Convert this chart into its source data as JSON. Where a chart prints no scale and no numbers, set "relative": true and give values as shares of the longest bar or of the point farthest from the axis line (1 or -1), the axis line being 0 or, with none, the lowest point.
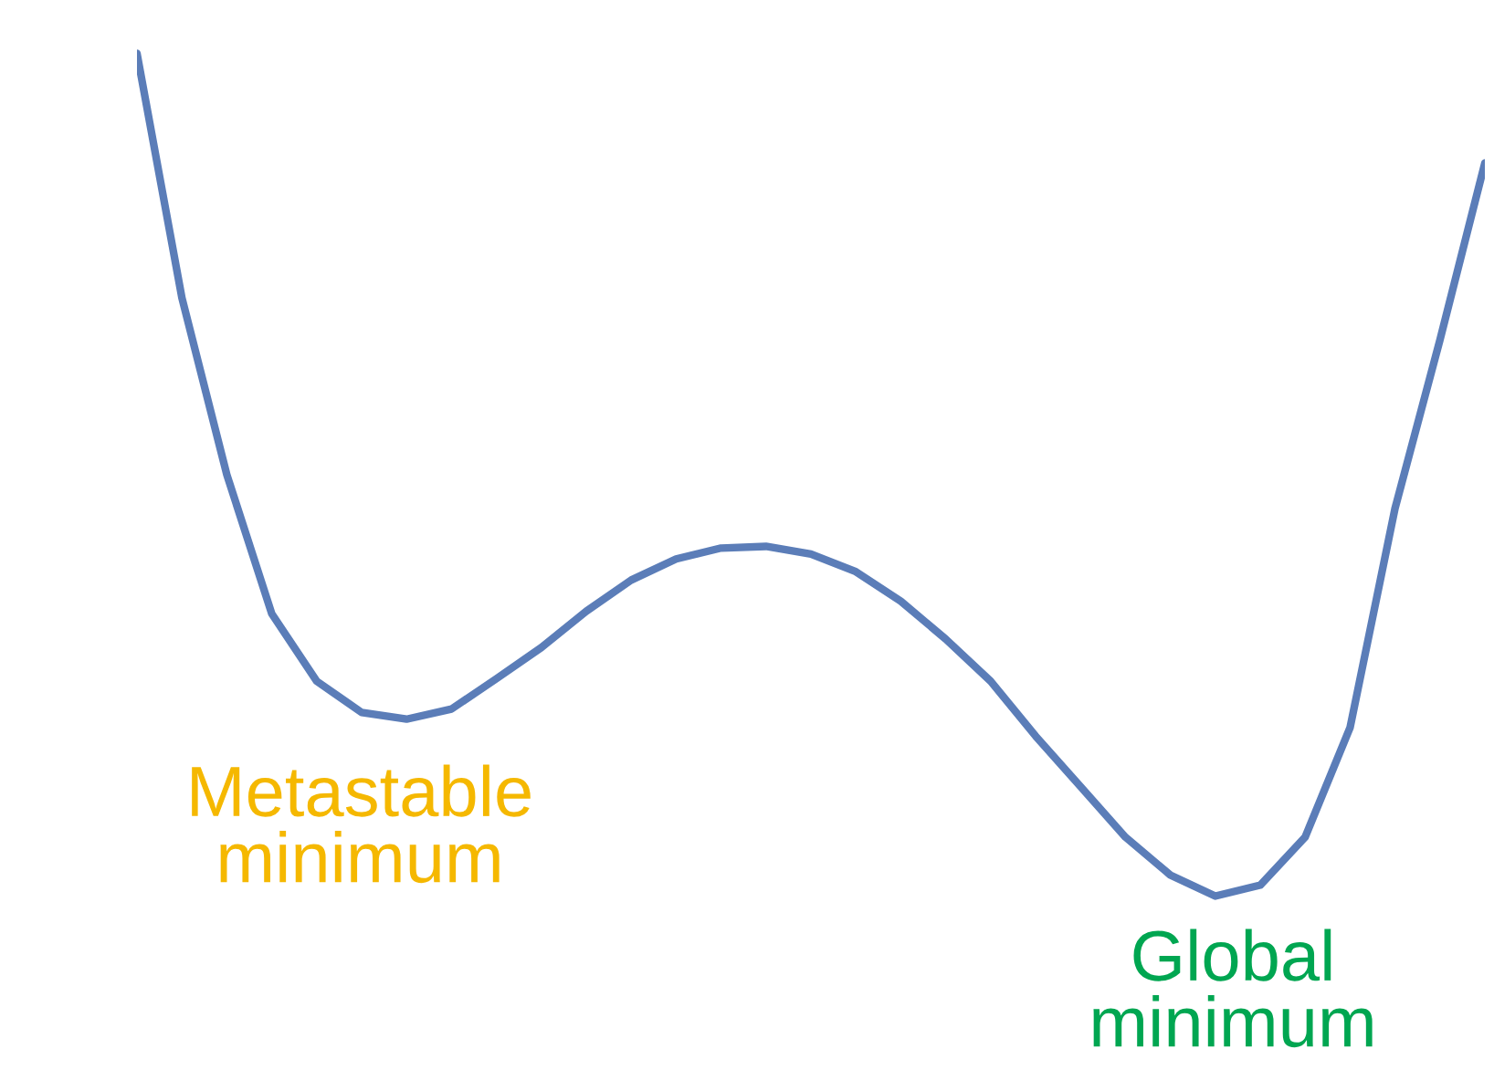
{
  "chart_data": {
    "type": "line",
    "relative": true,
    "categories": [
      null,
      null,
      null,
      null,
      null,
      null,
      null,
      null,
      null,
      null,
      null,
      null,
      null,
      null,
      null,
      null,
      null,
      null,
      null,
      null,
      null,
      null,
      null,
      null,
      null,
      null,
      null,
      null,
      null,
      null,
      null
    ],
    "series": [
      {
        "color": "#5b7db8",
        "values": [
          1.0,
          0.71,
          0.5,
          0.335,
          0.255,
          0.218,
          0.21,
          0.222,
          0.258,
          0.295,
          0.338,
          0.375,
          0.4,
          0.413,
          0.415,
          0.406,
          0.385,
          0.35,
          0.305,
          0.255,
          0.19,
          0.13,
          0.07,
          0.025,
          0,
          0.013,
          0.07,
          0.2,
          0.46,
          0.66,
          0.87
        ]
      }
    ],
    "annotations": [
      "Metastable\nminimum",
      "Global\nminimum"
    ],
    "marker": "none",
    "line_style": "solid"
  }
}
